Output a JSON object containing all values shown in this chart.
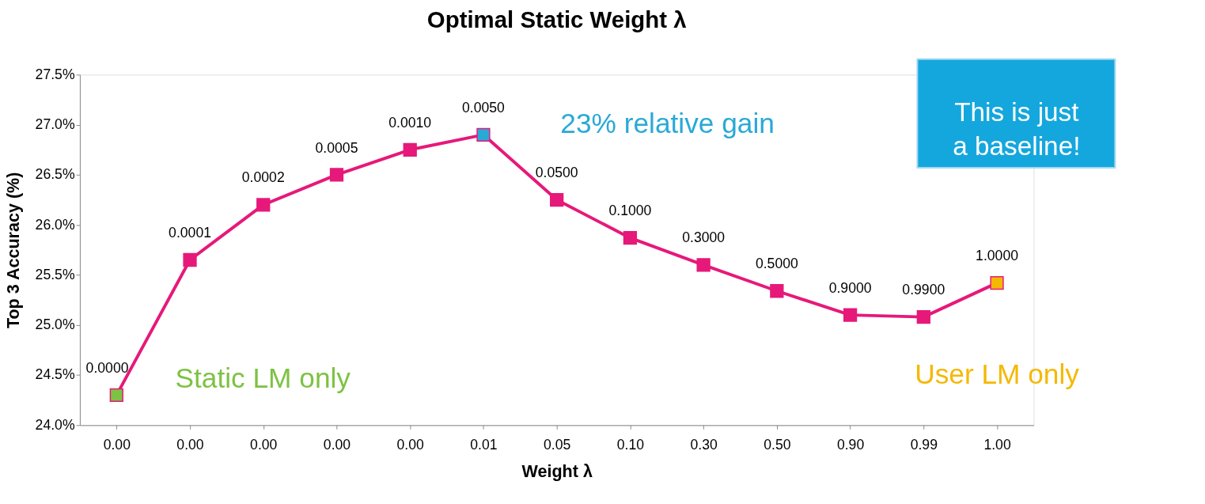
{
  "chart_data": {
    "type": "line",
    "title": "Optimal Static Weight λ",
    "xlabel": "Weight λ",
    "ylabel": "Top 3 Accuracy (%)",
    "categories": [
      "0.00",
      "0.00",
      "0.00",
      "0.00",
      "0.00",
      "0.01",
      "0.05",
      "0.10",
      "0.30",
      "0.50",
      "0.90",
      "0.99",
      "1.00"
    ],
    "series": [
      {
        "color": "#e6197a",
        "values": [
          24.3,
          25.65,
          26.2,
          26.5,
          26.75,
          26.9,
          26.25,
          25.87,
          25.6,
          25.34,
          25.1,
          25.08,
          25.42
        ],
        "colors": [
          "#7dc242",
          "#e6197a",
          "#e6197a",
          "#e6197a",
          "#e6197a",
          "#29a9d6",
          "#e6197a",
          "#e6197a",
          "#e6197a",
          "#e6197a",
          "#e6197a",
          "#e6197a",
          "#f5b800"
        ]
      }
    ],
    "ylim": [
      24.0,
      27.5
    ],
    "yticks": [
      {
        "value": 24.0,
        "label": "24.0%"
      },
      {
        "value": 24.5,
        "label": "24.5%"
      },
      {
        "value": 25.0,
        "label": "25.0%"
      },
      {
        "value": 25.5,
        "label": "25.5%"
      },
      {
        "value": 26.0,
        "label": "26.0%"
      },
      {
        "value": 26.5,
        "label": "26.5%"
      },
      {
        "value": 27.0,
        "label": "27.0%"
      },
      {
        "value": 27.5,
        "label": "27.5%"
      }
    ],
    "grid": false,
    "legend": false,
    "marker": "square",
    "line_style": "solid",
    "annotations": [
      "0.0000",
      "0.0001",
      "0.0002",
      "0.0005",
      "0.0010",
      "0.0050",
      "0.0500",
      "0.1000",
      "0.3000",
      "0.5000",
      "0.9000",
      "0.9900",
      "1.0000",
      "Static LM only",
      "23% relative gain",
      "User LM only",
      "This is just a baseline!"
    ]
  }
}
